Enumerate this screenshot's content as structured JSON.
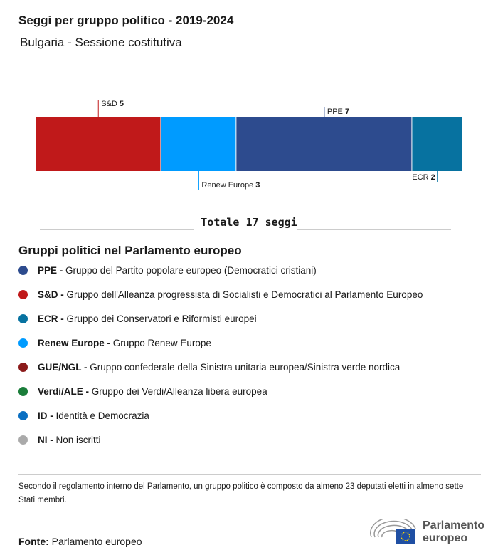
{
  "title": "Seggi per gruppo politico - 2019-2024",
  "subtitle": "Bulgaria - Sessione costitutiva",
  "total_label": "Totale 17 seggi",
  "chart_data": {
    "type": "bar",
    "orientation": "stacked-horizontal",
    "total": 17,
    "segments": [
      {
        "name": "S&D",
        "value": 5,
        "color": "#c0191a",
        "label_pos": "top"
      },
      {
        "name": "Renew Europe",
        "value": 3,
        "color": "#009bff",
        "label_pos": "bottom"
      },
      {
        "name": "PPE",
        "value": 7,
        "color": "#2d4b8e",
        "label_pos": "top"
      },
      {
        "name": "ECR",
        "value": 2,
        "color": "#0772a0",
        "label_pos": "bottom"
      }
    ]
  },
  "legend": {
    "title": "Gruppi politici nel Parlamento europeo",
    "items": [
      {
        "abbr": "PPE -",
        "desc": "Gruppo del Partito popolare europeo (Democratici cristiani)",
        "color": "#2d4b8e"
      },
      {
        "abbr": "S&D -",
        "desc": "Gruppo dell'Alleanza progressista di Socialisti e Democratici al Parlamento Europeo",
        "color": "#c0191a"
      },
      {
        "abbr": "ECR -",
        "desc": "Gruppo dei Conservatori e Riformisti europei",
        "color": "#0772a0"
      },
      {
        "abbr": "Renew Europe -",
        "desc": "Gruppo Renew Europe",
        "color": "#009bff"
      },
      {
        "abbr": "GUE/NGL -",
        "desc": "Gruppo confederale della Sinistra unitaria europea/Sinistra verde nordica",
        "color": "#8b1a1a"
      },
      {
        "abbr": "Verdi/ALE -",
        "desc": "Gruppo dei Verdi/Alleanza libera europea",
        "color": "#1a7d3a"
      },
      {
        "abbr": "ID -",
        "desc": "Identità e Democrazia",
        "color": "#0a6fc2"
      },
      {
        "abbr": "NI -",
        "desc": "Non iscritti",
        "color": "#aaaaaa"
      }
    ]
  },
  "note": "Secondo il regolamento interno del Parlamento, un gruppo politico è composto da almeno 23 deputati eletti in almeno sette Stati membri.",
  "source": {
    "label": "Fonte:",
    "value": "Parlamento europeo"
  },
  "logo": {
    "line1": "Parlamento",
    "line2": "europeo"
  }
}
